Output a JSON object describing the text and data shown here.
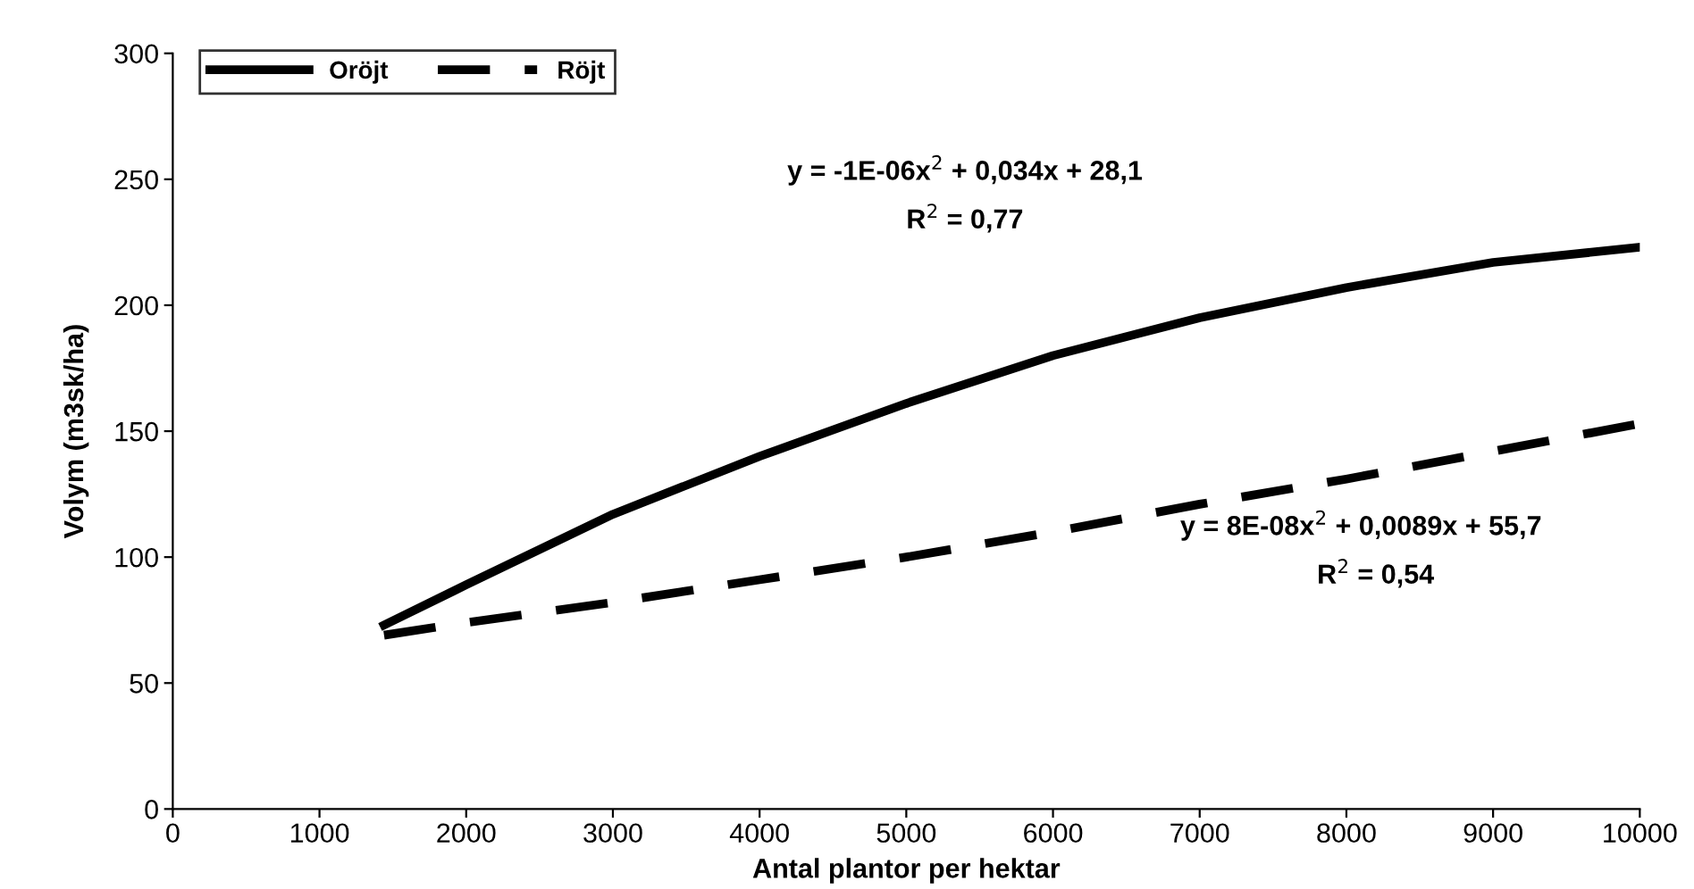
{
  "chart_data": {
    "type": "line",
    "xlabel": "Antal plantor per hektar",
    "ylabel": "Volym (m3sk/ha)",
    "x": [
      1440,
      2000,
      3000,
      4000,
      5000,
      6000,
      7000,
      8000,
      9000,
      10000
    ],
    "series": [
      {
        "name": "Oröjt",
        "color": "#000000",
        "line_style": "solid",
        "values": [
          73,
          89,
          117,
          140,
          161,
          180,
          195,
          207,
          217,
          223
        ]
      },
      {
        "name": "Röjt",
        "color": "#000000",
        "line_style": "dashed",
        "values": [
          69,
          74,
          82,
          91,
          100,
          110,
          121,
          131,
          142,
          153
        ]
      }
    ],
    "xlim": [
      0,
      10000
    ],
    "xticks": [
      0,
      1000,
      2000,
      3000,
      4000,
      5000,
      6000,
      7000,
      8000,
      9000,
      10000
    ],
    "ylim": [
      0,
      300
    ],
    "yticks": [
      0,
      50,
      100,
      150,
      200,
      250,
      300
    ],
    "grid": false,
    "legend": "top left",
    "marker": "none",
    "annotations": [
      "y = -1E-06x$^{2}$ + 0,034x + 28,1",
      "R$^{2}$ = 0,77",
      "y = 8E-08x$^{2}$ + 0,0089x + 55,7",
      "R$^{2}$ = 0,54"
    ]
  }
}
